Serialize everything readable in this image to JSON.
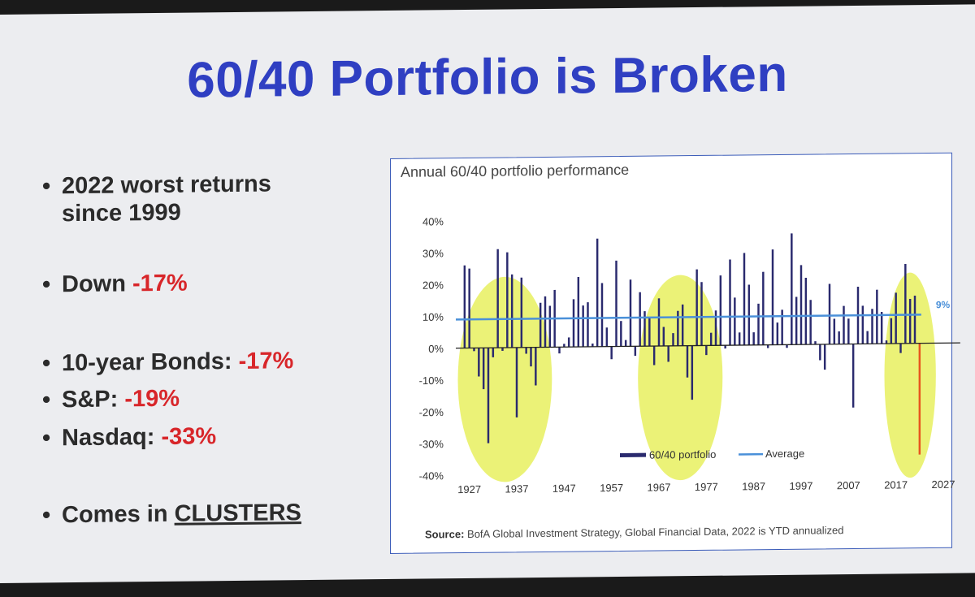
{
  "slide": {
    "title": "60/40 Portfolio is Broken",
    "bullets": [
      {
        "line1": "2022 worst returns",
        "line2": "since 1999"
      },
      {
        "text": "Down ",
        "neg": "-17%"
      },
      {
        "text": "10-year Bonds: ",
        "neg": "-17%"
      },
      {
        "text": "S&P: ",
        "neg": "-19%"
      },
      {
        "text": "Nasdaq: ",
        "neg": "-33%"
      },
      {
        "text": "Comes in ",
        "u": "CLUSTERS"
      }
    ],
    "bullet_glyph": "•"
  },
  "colors": {
    "title": "#2f3fc2",
    "negative": "#d8262a",
    "bars": "#2a2a6e",
    "current_bar": "#e8551e",
    "average_line": "#4a90d9",
    "highlight": "#e6ef55"
  },
  "chart_data": {
    "type": "bar",
    "title": "Annual 60/40 portfolio performance",
    "source_label": "Source:",
    "source_text": "BofA Global Investment Strategy, Global Financial Data, 2022 is YTD annualized",
    "x_ticks": [
      "1927",
      "1937",
      "1947",
      "1957",
      "1967",
      "1977",
      "1987",
      "1997",
      "2007",
      "2017",
      "2027"
    ],
    "y_ticks": [
      "40%",
      "30%",
      "20%",
      "10%",
      "0%",
      "-10%",
      "-20%",
      "-30%",
      "-40%"
    ],
    "ylim": [
      -40,
      40
    ],
    "xlim": [
      1925,
      2027
    ],
    "average": 9,
    "average_label": "9%",
    "legend": {
      "series": "60/40 portfolio",
      "average": "Average",
      "placement": "bottom-center"
    },
    "highlighted_periods": [
      [
        1928,
        1941
      ],
      [
        1966,
        1977
      ],
      [
        2018,
        2022
      ]
    ],
    "years": [
      1926,
      1927,
      1928,
      1929,
      1930,
      1931,
      1932,
      1933,
      1934,
      1935,
      1936,
      1937,
      1938,
      1939,
      1940,
      1941,
      1942,
      1943,
      1944,
      1945,
      1946,
      1947,
      1948,
      1949,
      1950,
      1951,
      1952,
      1953,
      1954,
      1955,
      1956,
      1957,
      1958,
      1959,
      1960,
      1961,
      1962,
      1963,
      1964,
      1965,
      1966,
      1967,
      1968,
      1969,
      1970,
      1971,
      1972,
      1973,
      1974,
      1975,
      1976,
      1977,
      1978,
      1979,
      1980,
      1981,
      1982,
      1983,
      1984,
      1985,
      1986,
      1987,
      1988,
      1989,
      1990,
      1991,
      1992,
      1993,
      1994,
      1995,
      1996,
      1997,
      1998,
      1999,
      2000,
      2001,
      2002,
      2003,
      2004,
      2005,
      2006,
      2007,
      2008,
      2009,
      2010,
      2011,
      2012,
      2013,
      2014,
      2015,
      2016,
      2017,
      2018,
      2019,
      2020,
      2021,
      2022
    ],
    "values": [
      26,
      25,
      -1,
      -9,
      -13,
      -30,
      -3,
      31,
      -1,
      30,
      23,
      -22,
      22,
      -2,
      -6,
      -12,
      14,
      16,
      13,
      18,
      -2,
      1,
      3,
      15,
      22,
      13,
      14,
      1,
      34,
      20,
      6,
      -4,
      27,
      8,
      2,
      21,
      -3,
      17,
      11,
      9,
      -6,
      15,
      6,
      -5,
      4,
      11,
      13,
      -10,
      -17,
      24,
      20,
      -3,
      4,
      11,
      22,
      -1,
      27,
      15,
      4,
      29,
      19,
      4,
      13,
      23,
      -1,
      30,
      7,
      11,
      -1,
      35,
      15,
      25,
      21,
      14,
      1,
      -5,
      -8,
      19,
      8,
      4,
      12,
      8,
      -20,
      18,
      12,
      4,
      11,
      17,
      10,
      1,
      8,
      16,
      -3,
      25,
      14,
      15,
      -35
    ]
  }
}
